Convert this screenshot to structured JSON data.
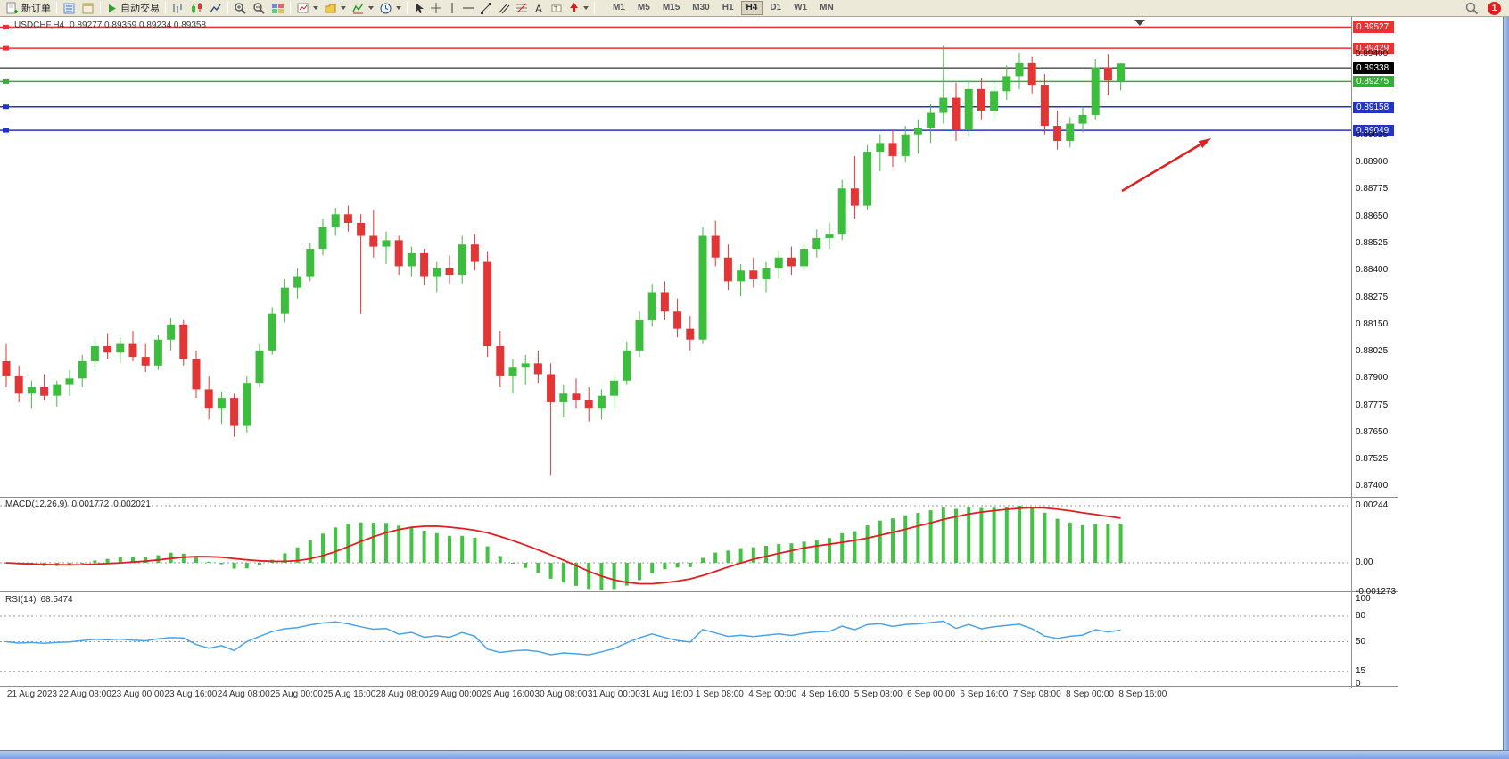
{
  "toolbar": {
    "new_order_label": "新订单",
    "autotrading_label": "自动交易",
    "timeframes": [
      "M1",
      "M5",
      "M15",
      "M30",
      "H1",
      "H4",
      "D1",
      "W1",
      "MN"
    ],
    "active_timeframe": "H4",
    "notification_count": "1",
    "icon_names": [
      "new-order-icon",
      "autotrading-icon",
      "bar-chart-icon",
      "candlestick-chart-icon",
      "line-chart-icon",
      "zoom-in-icon",
      "zoom-out-icon",
      "tile-windows-icon",
      "indicators-icon",
      "profiles-icon",
      "period-icon",
      "cursor-icon",
      "crosshair-icon",
      "vertical-line-icon",
      "horizontal-line-icon",
      "trendline-icon",
      "channel-icon",
      "fibonacci-icon",
      "text-icon",
      "label-icon",
      "arrows-icon",
      "search-icon",
      "notification-badge"
    ]
  },
  "chart": {
    "title": "USDCHF,H4",
    "ohlc": "0.89277 0.89359 0.89234 0.89358"
  },
  "chart_data": {
    "type": "candlestick",
    "symbol": "USDCHF",
    "timeframe": "H4",
    "colors": {
      "up": "#3dbd3d",
      "down": "#e23535"
    },
    "candles": [
      [
        0.8798,
        0.8806,
        0.8786,
        0.8791
      ],
      [
        0.8791,
        0.8796,
        0.8779,
        0.8783
      ],
      [
        0.8783,
        0.8789,
        0.8776,
        0.8786
      ],
      [
        0.8786,
        0.8792,
        0.878,
        0.8782
      ],
      [
        0.8782,
        0.8789,
        0.8777,
        0.8787
      ],
      [
        0.8787,
        0.8794,
        0.8782,
        0.879
      ],
      [
        0.879,
        0.8801,
        0.8786,
        0.8798
      ],
      [
        0.8798,
        0.8808,
        0.8794,
        0.8805
      ],
      [
        0.8805,
        0.8811,
        0.8799,
        0.8802
      ],
      [
        0.8802,
        0.8809,
        0.8797,
        0.8806
      ],
      [
        0.8806,
        0.8812,
        0.8798,
        0.88
      ],
      [
        0.88,
        0.8806,
        0.8793,
        0.8796
      ],
      [
        0.8796,
        0.881,
        0.8794,
        0.8808
      ],
      [
        0.8808,
        0.8818,
        0.8803,
        0.8815
      ],
      [
        0.8815,
        0.8817,
        0.8796,
        0.8799
      ],
      [
        0.8799,
        0.8803,
        0.8781,
        0.8785
      ],
      [
        0.8785,
        0.8791,
        0.8771,
        0.8776
      ],
      [
        0.8776,
        0.8784,
        0.8769,
        0.8781
      ],
      [
        0.8781,
        0.8783,
        0.8763,
        0.8768
      ],
      [
        0.8768,
        0.8791,
        0.8765,
        0.8788
      ],
      [
        0.8788,
        0.8806,
        0.8786,
        0.8803
      ],
      [
        0.8803,
        0.8823,
        0.8801,
        0.882
      ],
      [
        0.882,
        0.8836,
        0.8816,
        0.8832
      ],
      [
        0.8832,
        0.8841,
        0.8827,
        0.8837
      ],
      [
        0.8837,
        0.8853,
        0.8835,
        0.885
      ],
      [
        0.885,
        0.8864,
        0.8847,
        0.886
      ],
      [
        0.886,
        0.8869,
        0.8856,
        0.8866
      ],
      [
        0.8866,
        0.887,
        0.8858,
        0.8862
      ],
      [
        0.8862,
        0.8866,
        0.882,
        0.8856
      ],
      [
        0.8856,
        0.8868,
        0.8846,
        0.8851
      ],
      [
        0.8851,
        0.8858,
        0.8843,
        0.8854
      ],
      [
        0.8854,
        0.8856,
        0.8838,
        0.8842
      ],
      [
        0.8842,
        0.8851,
        0.8837,
        0.8848
      ],
      [
        0.8848,
        0.885,
        0.8833,
        0.8837
      ],
      [
        0.8837,
        0.8844,
        0.883,
        0.8841
      ],
      [
        0.8841,
        0.8847,
        0.8834,
        0.8838
      ],
      [
        0.8838,
        0.8856,
        0.8834,
        0.8852
      ],
      [
        0.8852,
        0.8857,
        0.884,
        0.8844
      ],
      [
        0.8844,
        0.8849,
        0.88,
        0.8805
      ],
      [
        0.8805,
        0.8812,
        0.8786,
        0.8791
      ],
      [
        0.8791,
        0.8799,
        0.8783,
        0.8795
      ],
      [
        0.8795,
        0.8801,
        0.8787,
        0.8797
      ],
      [
        0.8797,
        0.8803,
        0.8788,
        0.8792
      ],
      [
        0.8792,
        0.8797,
        0.8745,
        0.8779
      ],
      [
        0.8779,
        0.8787,
        0.8772,
        0.8783
      ],
      [
        0.8783,
        0.879,
        0.8776,
        0.878
      ],
      [
        0.878,
        0.8786,
        0.877,
        0.8776
      ],
      [
        0.8776,
        0.8785,
        0.8771,
        0.8782
      ],
      [
        0.8782,
        0.8792,
        0.8776,
        0.8789
      ],
      [
        0.8789,
        0.8807,
        0.8787,
        0.8803
      ],
      [
        0.8803,
        0.8821,
        0.88,
        0.8817
      ],
      [
        0.8817,
        0.8834,
        0.8814,
        0.883
      ],
      [
        0.883,
        0.8835,
        0.8817,
        0.8821
      ],
      [
        0.8821,
        0.8827,
        0.8809,
        0.8813
      ],
      [
        0.8813,
        0.8819,
        0.8803,
        0.8808
      ],
      [
        0.8808,
        0.886,
        0.8806,
        0.8856
      ],
      [
        0.8856,
        0.8863,
        0.8842,
        0.8846
      ],
      [
        0.8846,
        0.8852,
        0.8831,
        0.8835
      ],
      [
        0.8835,
        0.8843,
        0.8828,
        0.884
      ],
      [
        0.884,
        0.8846,
        0.8832,
        0.8836
      ],
      [
        0.8836,
        0.8844,
        0.883,
        0.8841
      ],
      [
        0.8841,
        0.8849,
        0.8836,
        0.8846
      ],
      [
        0.8846,
        0.8851,
        0.8838,
        0.8842
      ],
      [
        0.8842,
        0.8853,
        0.884,
        0.885
      ],
      [
        0.885,
        0.8859,
        0.8846,
        0.8855
      ],
      [
        0.8855,
        0.8862,
        0.885,
        0.8857
      ],
      [
        0.8857,
        0.8882,
        0.8854,
        0.8878
      ],
      [
        0.8878,
        0.8893,
        0.8864,
        0.887
      ],
      [
        0.887,
        0.8898,
        0.8868,
        0.8895
      ],
      [
        0.8895,
        0.8903,
        0.8886,
        0.8899
      ],
      [
        0.8899,
        0.8905,
        0.8888,
        0.8893
      ],
      [
        0.8893,
        0.8907,
        0.889,
        0.8903
      ],
      [
        0.8903,
        0.891,
        0.8894,
        0.8906
      ],
      [
        0.8906,
        0.8917,
        0.8899,
        0.8913
      ],
      [
        0.8913,
        0.8944,
        0.8908,
        0.892
      ],
      [
        0.892,
        0.8927,
        0.89,
        0.8905
      ],
      [
        0.8905,
        0.8928,
        0.8902,
        0.8924
      ],
      [
        0.8924,
        0.8929,
        0.891,
        0.8914
      ],
      [
        0.8914,
        0.8927,
        0.891,
        0.8923
      ],
      [
        0.8923,
        0.8935,
        0.8919,
        0.893
      ],
      [
        0.893,
        0.8941,
        0.8924,
        0.8936
      ],
      [
        0.8936,
        0.8939,
        0.8922,
        0.8926
      ],
      [
        0.8926,
        0.8931,
        0.8903,
        0.8907
      ],
      [
        0.8907,
        0.8914,
        0.8896,
        0.89
      ],
      [
        0.89,
        0.8911,
        0.8897,
        0.8908
      ],
      [
        0.8908,
        0.8916,
        0.8904,
        0.8912
      ],
      [
        0.8912,
        0.8938,
        0.891,
        0.8934
      ],
      [
        0.8934,
        0.894,
        0.8921,
        0.8928
      ],
      [
        0.89277,
        0.89359,
        0.89234,
        0.89358
      ]
    ],
    "price_lines": [
      {
        "label": "0.89527",
        "value": 0.89527,
        "color": "#ee3030",
        "width": 1.5,
        "handle": true
      },
      {
        "label": "0.89429",
        "value": 0.89429,
        "color": "#ee3030",
        "width": 1.5,
        "handle": true
      },
      {
        "label": "0.89338",
        "value": 0.89338,
        "color": "#000000",
        "width": 1,
        "handle": false
      },
      {
        "label": "0.89275",
        "value": 0.89275,
        "color": "#35ae35",
        "width": 1.5,
        "handle": true
      },
      {
        "label": "0.89158",
        "value": 0.89158,
        "color": "#2233cc",
        "width": 1.5,
        "handle": true
      },
      {
        "label": "0.89049",
        "value": 0.89049,
        "color": "#2233cc",
        "width": 1.5,
        "handle": true
      }
    ],
    "y_axis_ticks": [
      "0.89400",
      "0.89025",
      "0.88900",
      "0.88775",
      "0.88650",
      "0.88525",
      "0.88400",
      "0.88275",
      "0.88150",
      "0.88025",
      "0.87900",
      "0.87775",
      "0.87650",
      "0.87525",
      "0.87400"
    ],
    "x_axis_labels": [
      "21 Aug 2023",
      "22 Aug 08:00",
      "23 Aug 00:00",
      "23 Aug 16:00",
      "24 Aug 08:00",
      "25 Aug 00:00",
      "25 Aug 16:00",
      "28 Aug 08:00",
      "29 Aug 00:00",
      "29 Aug 16:00",
      "30 Aug 08:00",
      "31 Aug 00:00",
      "31 Aug 16:00",
      "1 Sep 08:00",
      "4 Sep 00:00",
      "4 Sep 16:00",
      "5 Sep 08:00",
      "6 Sep 00:00",
      "6 Sep 16:00",
      "7 Sep 08:00",
      "8 Sep 00:00",
      "8 Sep 16:00"
    ],
    "macd": {
      "label": "MACD(12,26,9)",
      "value": "0.001772",
      "signal_value": "0.002021",
      "bar_color": "#44c244",
      "line_color": "#e02020",
      "levels": [
        {
          "label": "0.00244",
          "value": 0.00244
        },
        {
          "label": "0.00",
          "value": 0
        },
        {
          "label": "-0.001273",
          "value": -0.001273
        }
      ]
    },
    "rsi": {
      "label": "RSI(14)",
      "value": "68.5474",
      "line_color": "#4aa3e8",
      "levels": [
        {
          "label": "100",
          "value": 100,
          "dashed": false
        },
        {
          "label": "80",
          "value": 80,
          "dashed": true
        },
        {
          "label": "50",
          "value": 50,
          "dashed": true
        },
        {
          "label": "15",
          "value": 15,
          "dashed": true
        },
        {
          "label": "0",
          "value": 0,
          "dashed": false
        }
      ]
    },
    "annotation_arrow": {
      "color": "#e02020",
      "direction": "up-right"
    }
  }
}
